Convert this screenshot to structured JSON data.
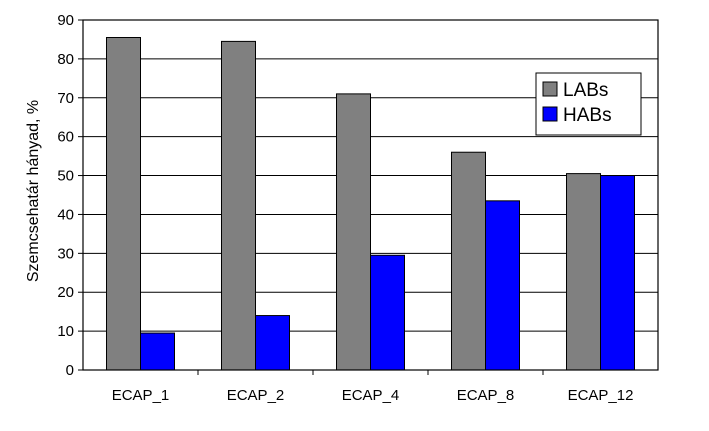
{
  "chart_data": {
    "type": "bar",
    "title": "",
    "xlabel": "",
    "ylabel": "Szemcsehatár hányad, %",
    "ylim": [
      0,
      90
    ],
    "yticks": [
      0,
      10,
      20,
      30,
      40,
      50,
      60,
      70,
      80,
      90
    ],
    "grid": "horizontal",
    "legend_position": "top-right",
    "categories": [
      "ECAP_1",
      "ECAP_2",
      "ECAP_4",
      "ECAP_8",
      "ECAP_12"
    ],
    "series": [
      {
        "name": "LABs",
        "color": "#808080",
        "values": [
          85.5,
          84.5,
          71,
          56,
          50.5
        ]
      },
      {
        "name": "HABs",
        "color": "#0000FF",
        "values": [
          9.5,
          14,
          29.5,
          43.5,
          50
        ]
      }
    ]
  }
}
